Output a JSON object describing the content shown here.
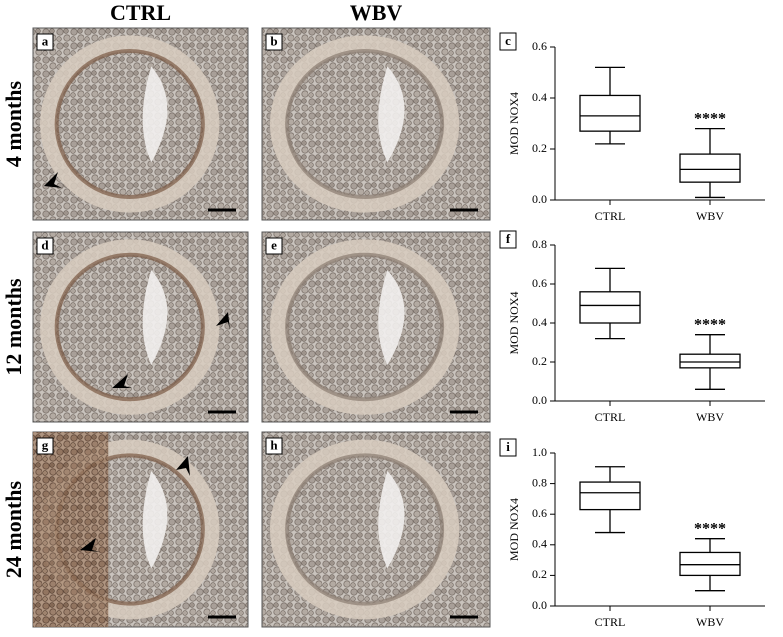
{
  "column_labels": [
    "CTRL",
    "WBV"
  ],
  "row_labels": [
    "4 months",
    "12 months",
    "24 months"
  ],
  "image_panels": [
    "a",
    "b",
    "d",
    "e",
    "g",
    "h"
  ],
  "chart_data": [
    {
      "type": "box",
      "panel_label": "c",
      "ylabel": "MOD NOX4",
      "categories": [
        "CTRL",
        "WBV"
      ],
      "boxes": [
        {
          "min": 0.22,
          "q1": 0.27,
          "median": 0.33,
          "q3": 0.41,
          "max": 0.52
        },
        {
          "min": 0.01,
          "q1": 0.07,
          "median": 0.12,
          "q3": 0.18,
          "max": 0.28
        }
      ],
      "annotations": [
        null,
        "****"
      ],
      "ylim": [
        0,
        0.6
      ],
      "yticks": [
        {
          "value": 0,
          "label": "0.0"
        },
        0.2,
        0.4,
        0.6
      ]
    },
    {
      "type": "box",
      "panel_label": "f",
      "ylabel": "MOD NOX4",
      "categories": [
        "CTRL",
        "WBV"
      ],
      "boxes": [
        {
          "min": 0.32,
          "q1": 0.4,
          "median": 0.49,
          "q3": 0.56,
          "max": 0.68
        },
        {
          "min": 0.06,
          "q1": 0.17,
          "median": 0.2,
          "q3": 0.24,
          "max": 0.34
        }
      ],
      "annotations": [
        null,
        "****"
      ],
      "ylim": [
        0,
        0.8
      ],
      "yticks": [
        {
          "value": 0,
          "label": "0.0"
        },
        0.2,
        0.4,
        0.6,
        0.8
      ]
    },
    {
      "type": "box",
      "panel_label": "i",
      "ylabel": "MOD NOX4",
      "categories": [
        "CTRL",
        "WBV"
      ],
      "boxes": [
        {
          "min": 0.48,
          "q1": 0.63,
          "median": 0.74,
          "q3": 0.81,
          "max": 0.91
        },
        {
          "min": 0.1,
          "q1": 0.2,
          "median": 0.27,
          "q3": 0.35,
          "max": 0.44
        }
      ],
      "annotations": [
        null,
        "****"
      ],
      "ylim": [
        0,
        1.0
      ],
      "yticks": [
        {
          "value": 0,
          "label": "0.0"
        },
        0.2,
        0.4,
        0.6,
        0.8,
        {
          "value": 1,
          "label": "1.0"
        }
      ]
    }
  ]
}
